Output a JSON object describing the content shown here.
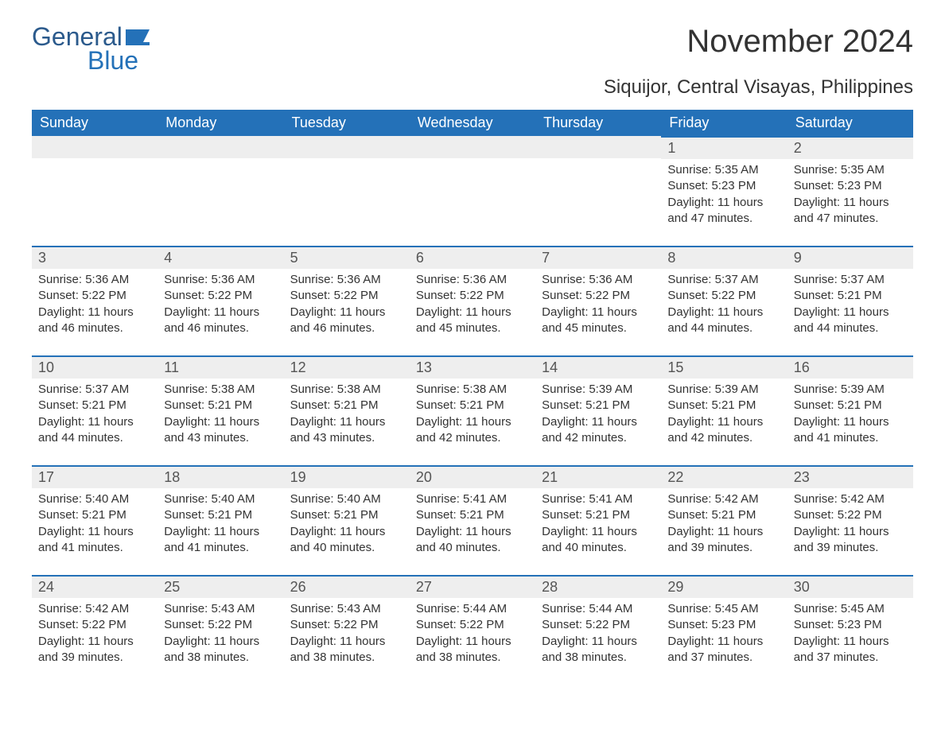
{
  "logo": {
    "general": "General",
    "blue": "Blue",
    "flag_color": "#2471b8"
  },
  "title": "November 2024",
  "subtitle": "Siquijor, Central Visayas, Philippines",
  "colors": {
    "header_bg": "#2471b8",
    "header_text": "#ffffff",
    "daynum_bg": "#eeeeee",
    "daynum_text": "#555555",
    "body_text": "#333333",
    "row_border": "#2471b8",
    "page_bg": "#ffffff"
  },
  "fonts": {
    "title_size": 40,
    "subtitle_size": 24,
    "dow_size": 18,
    "daynum_size": 18,
    "body_size": 15
  },
  "days_of_week": [
    "Sunday",
    "Monday",
    "Tuesday",
    "Wednesday",
    "Thursday",
    "Friday",
    "Saturday"
  ],
  "weeks": [
    [
      {
        "empty": true
      },
      {
        "empty": true
      },
      {
        "empty": true
      },
      {
        "empty": true
      },
      {
        "empty": true
      },
      {
        "num": "1",
        "sunrise": "Sunrise: 5:35 AM",
        "sunset": "Sunset: 5:23 PM",
        "daylight": "Daylight: 11 hours and 47 minutes."
      },
      {
        "num": "2",
        "sunrise": "Sunrise: 5:35 AM",
        "sunset": "Sunset: 5:23 PM",
        "daylight": "Daylight: 11 hours and 47 minutes."
      }
    ],
    [
      {
        "num": "3",
        "sunrise": "Sunrise: 5:36 AM",
        "sunset": "Sunset: 5:22 PM",
        "daylight": "Daylight: 11 hours and 46 minutes."
      },
      {
        "num": "4",
        "sunrise": "Sunrise: 5:36 AM",
        "sunset": "Sunset: 5:22 PM",
        "daylight": "Daylight: 11 hours and 46 minutes."
      },
      {
        "num": "5",
        "sunrise": "Sunrise: 5:36 AM",
        "sunset": "Sunset: 5:22 PM",
        "daylight": "Daylight: 11 hours and 46 minutes."
      },
      {
        "num": "6",
        "sunrise": "Sunrise: 5:36 AM",
        "sunset": "Sunset: 5:22 PM",
        "daylight": "Daylight: 11 hours and 45 minutes."
      },
      {
        "num": "7",
        "sunrise": "Sunrise: 5:36 AM",
        "sunset": "Sunset: 5:22 PM",
        "daylight": "Daylight: 11 hours and 45 minutes."
      },
      {
        "num": "8",
        "sunrise": "Sunrise: 5:37 AM",
        "sunset": "Sunset: 5:22 PM",
        "daylight": "Daylight: 11 hours and 44 minutes."
      },
      {
        "num": "9",
        "sunrise": "Sunrise: 5:37 AM",
        "sunset": "Sunset: 5:21 PM",
        "daylight": "Daylight: 11 hours and 44 minutes."
      }
    ],
    [
      {
        "num": "10",
        "sunrise": "Sunrise: 5:37 AM",
        "sunset": "Sunset: 5:21 PM",
        "daylight": "Daylight: 11 hours and 44 minutes."
      },
      {
        "num": "11",
        "sunrise": "Sunrise: 5:38 AM",
        "sunset": "Sunset: 5:21 PM",
        "daylight": "Daylight: 11 hours and 43 minutes."
      },
      {
        "num": "12",
        "sunrise": "Sunrise: 5:38 AM",
        "sunset": "Sunset: 5:21 PM",
        "daylight": "Daylight: 11 hours and 43 minutes."
      },
      {
        "num": "13",
        "sunrise": "Sunrise: 5:38 AM",
        "sunset": "Sunset: 5:21 PM",
        "daylight": "Daylight: 11 hours and 42 minutes."
      },
      {
        "num": "14",
        "sunrise": "Sunrise: 5:39 AM",
        "sunset": "Sunset: 5:21 PM",
        "daylight": "Daylight: 11 hours and 42 minutes."
      },
      {
        "num": "15",
        "sunrise": "Sunrise: 5:39 AM",
        "sunset": "Sunset: 5:21 PM",
        "daylight": "Daylight: 11 hours and 42 minutes."
      },
      {
        "num": "16",
        "sunrise": "Sunrise: 5:39 AM",
        "sunset": "Sunset: 5:21 PM",
        "daylight": "Daylight: 11 hours and 41 minutes."
      }
    ],
    [
      {
        "num": "17",
        "sunrise": "Sunrise: 5:40 AM",
        "sunset": "Sunset: 5:21 PM",
        "daylight": "Daylight: 11 hours and 41 minutes."
      },
      {
        "num": "18",
        "sunrise": "Sunrise: 5:40 AM",
        "sunset": "Sunset: 5:21 PM",
        "daylight": "Daylight: 11 hours and 41 minutes."
      },
      {
        "num": "19",
        "sunrise": "Sunrise: 5:40 AM",
        "sunset": "Sunset: 5:21 PM",
        "daylight": "Daylight: 11 hours and 40 minutes."
      },
      {
        "num": "20",
        "sunrise": "Sunrise: 5:41 AM",
        "sunset": "Sunset: 5:21 PM",
        "daylight": "Daylight: 11 hours and 40 minutes."
      },
      {
        "num": "21",
        "sunrise": "Sunrise: 5:41 AM",
        "sunset": "Sunset: 5:21 PM",
        "daylight": "Daylight: 11 hours and 40 minutes."
      },
      {
        "num": "22",
        "sunrise": "Sunrise: 5:42 AM",
        "sunset": "Sunset: 5:21 PM",
        "daylight": "Daylight: 11 hours and 39 minutes."
      },
      {
        "num": "23",
        "sunrise": "Sunrise: 5:42 AM",
        "sunset": "Sunset: 5:22 PM",
        "daylight": "Daylight: 11 hours and 39 minutes."
      }
    ],
    [
      {
        "num": "24",
        "sunrise": "Sunrise: 5:42 AM",
        "sunset": "Sunset: 5:22 PM",
        "daylight": "Daylight: 11 hours and 39 minutes."
      },
      {
        "num": "25",
        "sunrise": "Sunrise: 5:43 AM",
        "sunset": "Sunset: 5:22 PM",
        "daylight": "Daylight: 11 hours and 38 minutes."
      },
      {
        "num": "26",
        "sunrise": "Sunrise: 5:43 AM",
        "sunset": "Sunset: 5:22 PM",
        "daylight": "Daylight: 11 hours and 38 minutes."
      },
      {
        "num": "27",
        "sunrise": "Sunrise: 5:44 AM",
        "sunset": "Sunset: 5:22 PM",
        "daylight": "Daylight: 11 hours and 38 minutes."
      },
      {
        "num": "28",
        "sunrise": "Sunrise: 5:44 AM",
        "sunset": "Sunset: 5:22 PM",
        "daylight": "Daylight: 11 hours and 38 minutes."
      },
      {
        "num": "29",
        "sunrise": "Sunrise: 5:45 AM",
        "sunset": "Sunset: 5:23 PM",
        "daylight": "Daylight: 11 hours and 37 minutes."
      },
      {
        "num": "30",
        "sunrise": "Sunrise: 5:45 AM",
        "sunset": "Sunset: 5:23 PM",
        "daylight": "Daylight: 11 hours and 37 minutes."
      }
    ]
  ]
}
